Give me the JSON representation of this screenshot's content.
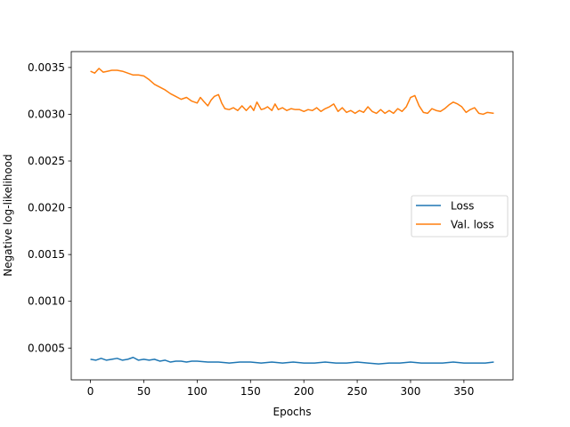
{
  "chart_data": {
    "type": "line",
    "title": "",
    "xlabel": "Epochs",
    "ylabel": "Negative log-likelihood",
    "xlim": [
      -18,
      396
    ],
    "ylim": [
      0.00016,
      0.00367
    ],
    "xticks": [
      0,
      50,
      100,
      150,
      200,
      250,
      300,
      350
    ],
    "yticks": [
      0.0005,
      0.001,
      0.0015,
      0.002,
      0.0025,
      0.003,
      0.0035
    ],
    "ytick_labels": [
      "0.0005",
      "0.0010",
      "0.0015",
      "0.0020",
      "0.0025",
      "0.0030",
      "0.0035"
    ],
    "grid": false,
    "legend_position": "center-right",
    "series": [
      {
        "name": "Loss",
        "color": "#1f77b4",
        "x": [
          0,
          5,
          10,
          15,
          20,
          25,
          30,
          35,
          40,
          45,
          50,
          55,
          60,
          65,
          70,
          75,
          80,
          85,
          90,
          95,
          100,
          110,
          120,
          130,
          140,
          150,
          160,
          170,
          180,
          190,
          200,
          210,
          220,
          230,
          240,
          250,
          260,
          270,
          280,
          290,
          300,
          310,
          320,
          330,
          340,
          350,
          360,
          370,
          378
        ],
        "y": [
          0.00038,
          0.00037,
          0.00039,
          0.00037,
          0.00038,
          0.00039,
          0.00037,
          0.00038,
          0.0004,
          0.00037,
          0.00038,
          0.00037,
          0.00038,
          0.00036,
          0.00037,
          0.00035,
          0.00036,
          0.00036,
          0.00035,
          0.00036,
          0.00036,
          0.00035,
          0.00035,
          0.00034,
          0.00035,
          0.00035,
          0.00034,
          0.00035,
          0.00034,
          0.00035,
          0.00034,
          0.00034,
          0.00035,
          0.00034,
          0.00034,
          0.00035,
          0.00034,
          0.00033,
          0.00034,
          0.00034,
          0.00035,
          0.00034,
          0.00034,
          0.00034,
          0.00035,
          0.00034,
          0.00034,
          0.00034,
          0.00035
        ]
      },
      {
        "name": "Val. loss",
        "color": "#ff7f0e",
        "x": [
          0,
          4,
          8,
          12,
          16,
          20,
          25,
          30,
          35,
          40,
          45,
          50,
          55,
          60,
          65,
          70,
          75,
          80,
          85,
          90,
          95,
          100,
          103,
          106,
          110,
          113,
          116,
          120,
          123,
          126,
          130,
          134,
          138,
          142,
          146,
          150,
          153,
          156,
          160,
          163,
          166,
          170,
          173,
          176,
          180,
          184,
          188,
          192,
          196,
          200,
          204,
          208,
          212,
          216,
          220,
          224,
          228,
          232,
          236,
          240,
          244,
          248,
          252,
          256,
          260,
          264,
          268,
          272,
          276,
          280,
          284,
          288,
          292,
          296,
          300,
          304,
          308,
          312,
          316,
          320,
          324,
          328,
          332,
          336,
          340,
          344,
          348,
          352,
          356,
          360,
          364,
          368,
          372,
          378
        ],
        "y": [
          0.00346,
          0.00344,
          0.00349,
          0.00345,
          0.00346,
          0.00347,
          0.00347,
          0.00346,
          0.00344,
          0.00342,
          0.00342,
          0.00341,
          0.00337,
          0.00332,
          0.00329,
          0.00326,
          0.00322,
          0.00319,
          0.00316,
          0.00318,
          0.00314,
          0.00312,
          0.00318,
          0.00314,
          0.00309,
          0.00315,
          0.00319,
          0.00321,
          0.00312,
          0.00306,
          0.00305,
          0.00307,
          0.00304,
          0.00309,
          0.00304,
          0.00309,
          0.00304,
          0.00313,
          0.00305,
          0.00306,
          0.00308,
          0.00304,
          0.00311,
          0.00305,
          0.00307,
          0.00304,
          0.00306,
          0.00305,
          0.00305,
          0.00303,
          0.00305,
          0.00304,
          0.00307,
          0.00303,
          0.00306,
          0.00308,
          0.00311,
          0.00303,
          0.00307,
          0.00302,
          0.00304,
          0.00301,
          0.00304,
          0.00302,
          0.00308,
          0.00303,
          0.00301,
          0.00305,
          0.00301,
          0.00304,
          0.00301,
          0.00306,
          0.00303,
          0.00308,
          0.00318,
          0.0032,
          0.00309,
          0.00302,
          0.00301,
          0.00306,
          0.00304,
          0.00303,
          0.00306,
          0.0031,
          0.00313,
          0.00311,
          0.00308,
          0.00302,
          0.00305,
          0.00307,
          0.00301,
          0.003,
          0.00302,
          0.00301
        ]
      }
    ]
  }
}
